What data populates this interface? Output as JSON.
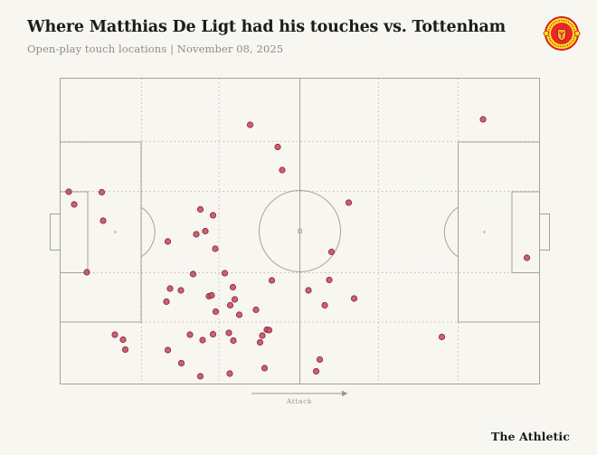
{
  "header": {
    "title": "Where Matthias De Ligt had his touches vs. Tottenham",
    "subtitle": "Open-play touch locations | November 08, 2025"
  },
  "badge": {
    "club": "Manchester United crest"
  },
  "pitch": {
    "attack_label": "Attack"
  },
  "footer": {
    "brand": "The Athletic"
  },
  "colors": {
    "background": "#f7f6f1",
    "pitch_line": "#a5a19a",
    "grid_dotted": "#c2beb6",
    "touch_fill": "#c9515f",
    "touch_stroke": "#8e3340",
    "title_text": "#1c1c1c",
    "subtitle_text": "#8f8c86",
    "badge_red": "#e8262b",
    "badge_yellow": "#ffe11f"
  },
  "chart_data": {
    "type": "scatter",
    "title": "Where Matthias De Ligt had his touches vs. Tottenham",
    "subtitle": "Open-play touch locations | November 08, 2025",
    "player": "Matthias De Ligt",
    "opponent": "Tottenham",
    "date": "November 08, 2025",
    "attack_direction": "left-to-right",
    "touch_count": 56,
    "pitch_bounds": {
      "x_min": 66.5,
      "x_max": 596.5,
      "y_min": 86.5,
      "y_max": 424.5
    },
    "marker": {
      "radius": 3.1,
      "fill": "#c9515f",
      "stroke": "#8e3340"
    },
    "points": [
      [
        276.5,
        138
      ],
      [
        307,
        162.5
      ],
      [
        312,
        188
      ],
      [
        534,
        132
      ],
      [
        385.5,
        224
      ],
      [
        76,
        212
      ],
      [
        112.5,
        212.5
      ],
      [
        82,
        226
      ],
      [
        114,
        244
      ],
      [
        185.5,
        267
      ],
      [
        96,
        301
      ],
      [
        221.5,
        231.5
      ],
      [
        235.5,
        238
      ],
      [
        227,
        255.5
      ],
      [
        217,
        259
      ],
      [
        238,
        275
      ],
      [
        366.5,
        278.5
      ],
      [
        213.5,
        303
      ],
      [
        248.5,
        302
      ],
      [
        300.5,
        310
      ],
      [
        364,
        309.5
      ],
      [
        257.5,
        317.5
      ],
      [
        188,
        319
      ],
      [
        200,
        321
      ],
      [
        341,
        321
      ],
      [
        231,
        327.5
      ],
      [
        234,
        326.5
      ],
      [
        259.5,
        331
      ],
      [
        184,
        333.5
      ],
      [
        254.5,
        337.5
      ],
      [
        359,
        337.5
      ],
      [
        391.5,
        330
      ],
      [
        238.5,
        344.5
      ],
      [
        283,
        342.5
      ],
      [
        264.5,
        348
      ],
      [
        295,
        364.5
      ],
      [
        297.5,
        365
      ],
      [
        290,
        371
      ],
      [
        287.5,
        378.5
      ],
      [
        127,
        370
      ],
      [
        136,
        375.5
      ],
      [
        138.5,
        386.5
      ],
      [
        210,
        370
      ],
      [
        224,
        376
      ],
      [
        235.5,
        369.5
      ],
      [
        253,
        368
      ],
      [
        258,
        376.5
      ],
      [
        185.5,
        387
      ],
      [
        200.5,
        401.5
      ],
      [
        221.5,
        416
      ],
      [
        254,
        413
      ],
      [
        292.5,
        407
      ],
      [
        353.5,
        397.5
      ],
      [
        349.5,
        410.5
      ],
      [
        488.5,
        372.5
      ],
      [
        582.5,
        285
      ]
    ]
  }
}
